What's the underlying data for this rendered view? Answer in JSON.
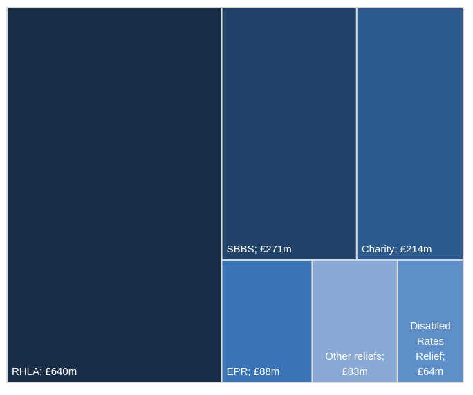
{
  "chart_data": {
    "type": "treemap",
    "title": "",
    "border_color": "#d9d9d9",
    "items": [
      {
        "label": "RHLA; £640m",
        "lines": [
          "RHLA; £640m"
        ],
        "value": 640,
        "color": "#1b2e48",
        "align": "left"
      },
      {
        "label": "SBBS; £271m",
        "lines": [
          "SBBS; £271m"
        ],
        "value": 271,
        "color": "#21436a",
        "align": "left"
      },
      {
        "label": "Charity; £214m",
        "lines": [
          "Charity; £214m"
        ],
        "value": 214,
        "color": "#2e5b8e",
        "align": "left"
      },
      {
        "label": "EPR; £88m",
        "lines": [
          "EPR; £88m"
        ],
        "value": 88,
        "color": "#3b74b6",
        "align": "left"
      },
      {
        "label": "Other reliefs; £83m",
        "lines": [
          "Other reliefs;",
          "£83m"
        ],
        "value": 83,
        "color": "#88a9d4",
        "align": "center"
      },
      {
        "label": "Disabled Rates Relief; £64m",
        "lines": [
          "Disabled",
          "Rates",
          "Relief;",
          "£64m"
        ],
        "value": 64,
        "color": "#5f8fc8",
        "align": "center"
      }
    ]
  }
}
